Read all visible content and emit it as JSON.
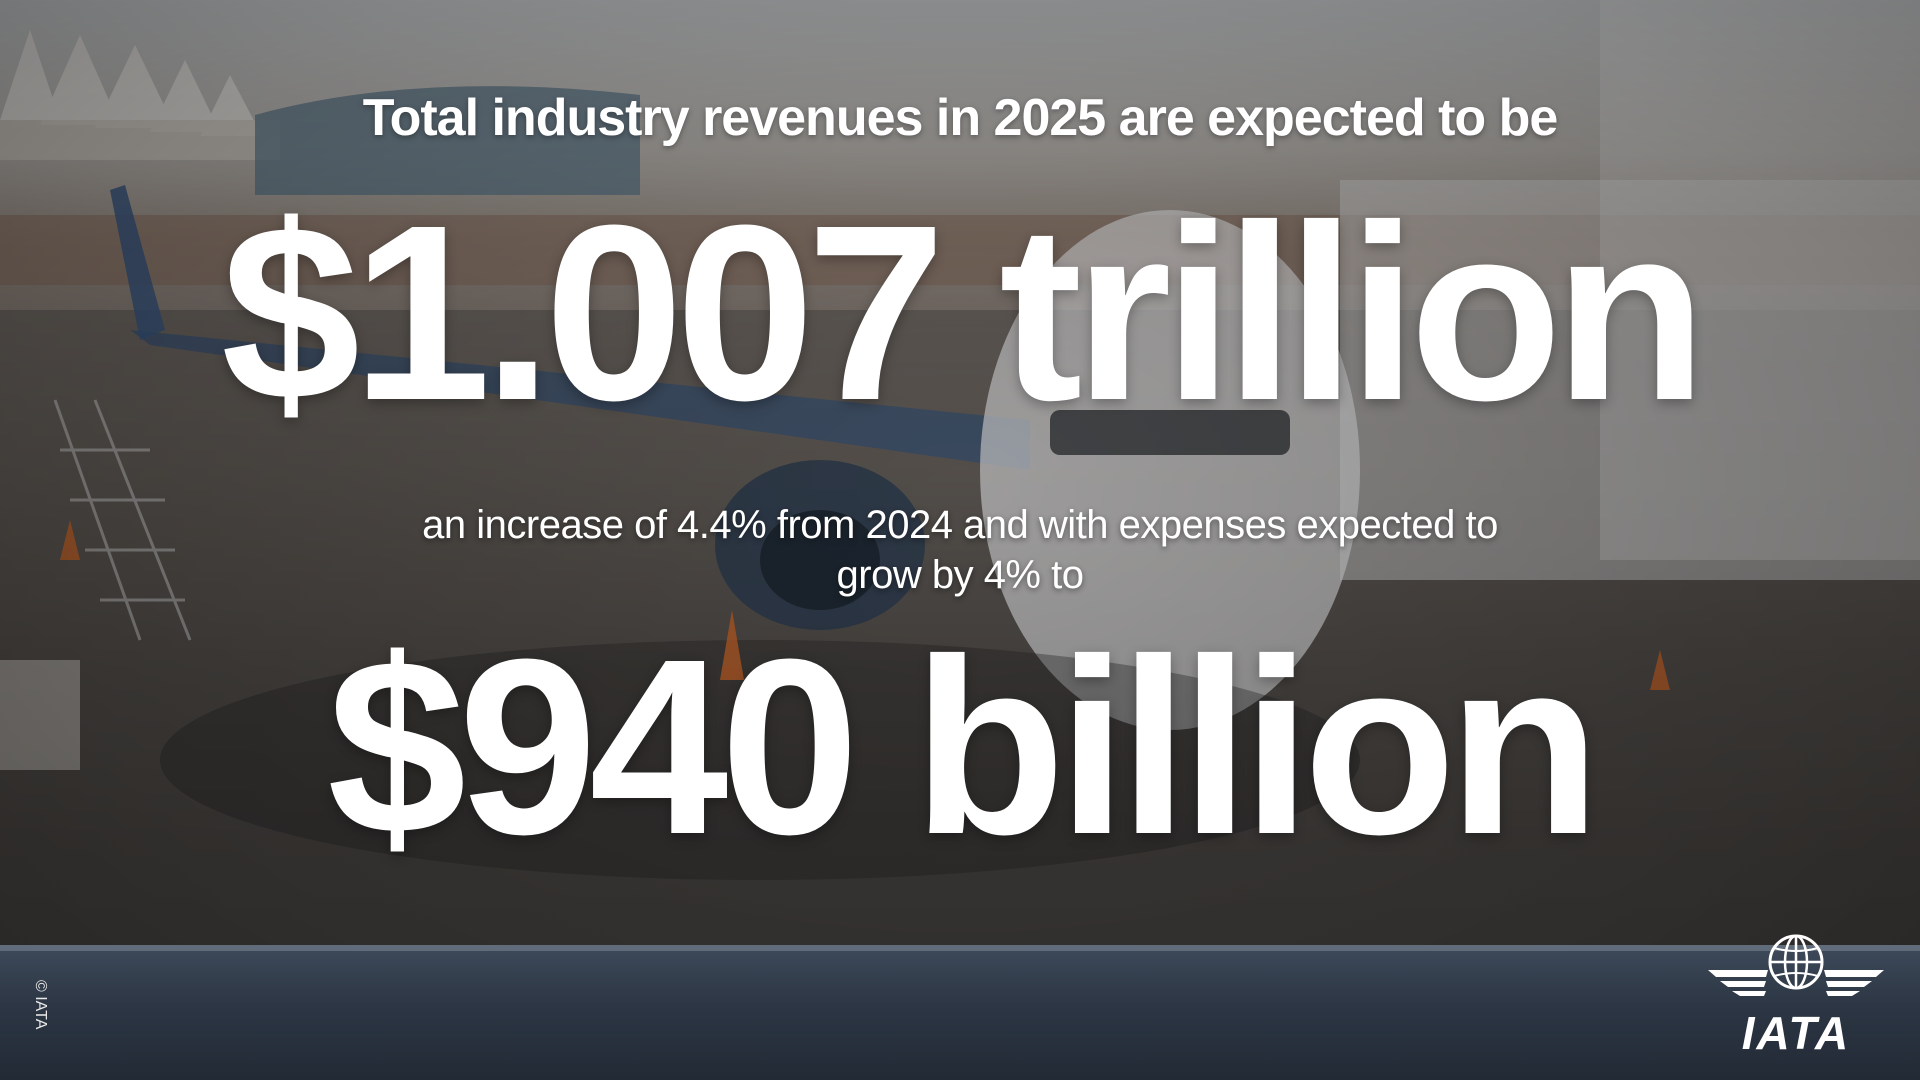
{
  "headline": "Total industry revenues in 2025 are expected to be",
  "revenue_figure": "$1.007 trillion",
  "subtext_line1": "an increase of 4.4% from 2024 and with expenses expected to",
  "subtext_line2": "grow by 4% to",
  "expenses_figure": "$940 billion",
  "copyright": "© IATA",
  "logo": {
    "text": "IATA",
    "icon": "globe-wings-icon"
  },
  "colors": {
    "text": "#ffffff",
    "bottom_bar": "#2c3644"
  }
}
